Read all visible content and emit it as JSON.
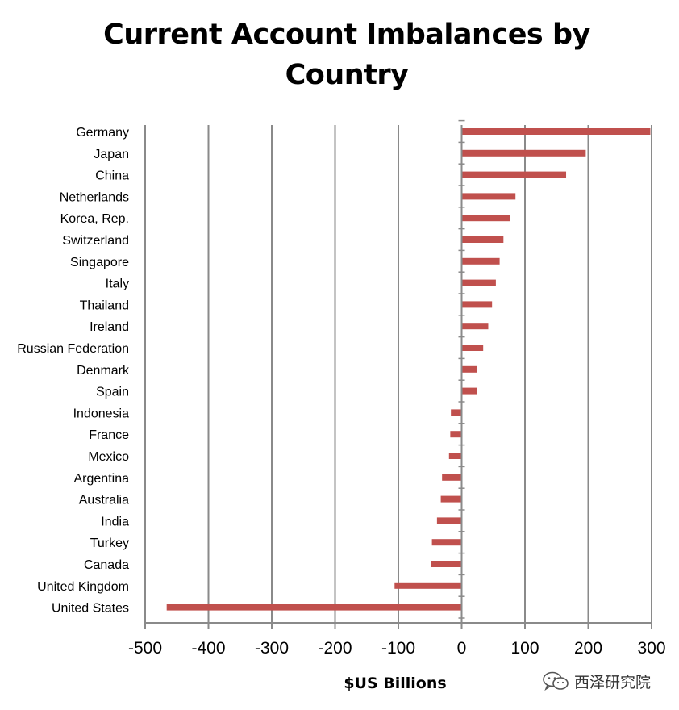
{
  "chart_data": {
    "type": "bar",
    "orientation": "horizontal",
    "title": "Current Account Imbalances by Country",
    "xlabel": "$US Billions",
    "ylabel": "",
    "xlim": [
      -500,
      300
    ],
    "xticks": [
      -500,
      -400,
      -300,
      -200,
      -100,
      0,
      100,
      200,
      300
    ],
    "grid": true,
    "bar_color": "#c0504d",
    "categories": [
      "Germany",
      "Japan",
      "China",
      "Netherlands",
      "Korea, Rep.",
      "Switzerland",
      "Singapore",
      "Italy",
      "Thailand",
      "Ireland",
      "Russian Federation",
      "Denmark",
      "Spain",
      "Indonesia",
      "France",
      "Mexico",
      "Argentina",
      "Australia",
      "India",
      "Turkey",
      "Canada",
      "United Kingdom",
      "United States"
    ],
    "values": [
      298,
      196,
      165,
      85,
      77,
      66,
      60,
      54,
      48,
      42,
      34,
      24,
      24,
      -17,
      -18,
      -20,
      -31,
      -33,
      -39,
      -47,
      -49,
      -106,
      -466
    ]
  },
  "watermark": {
    "text": "西泽研究院",
    "icon": "wechat-icon"
  }
}
